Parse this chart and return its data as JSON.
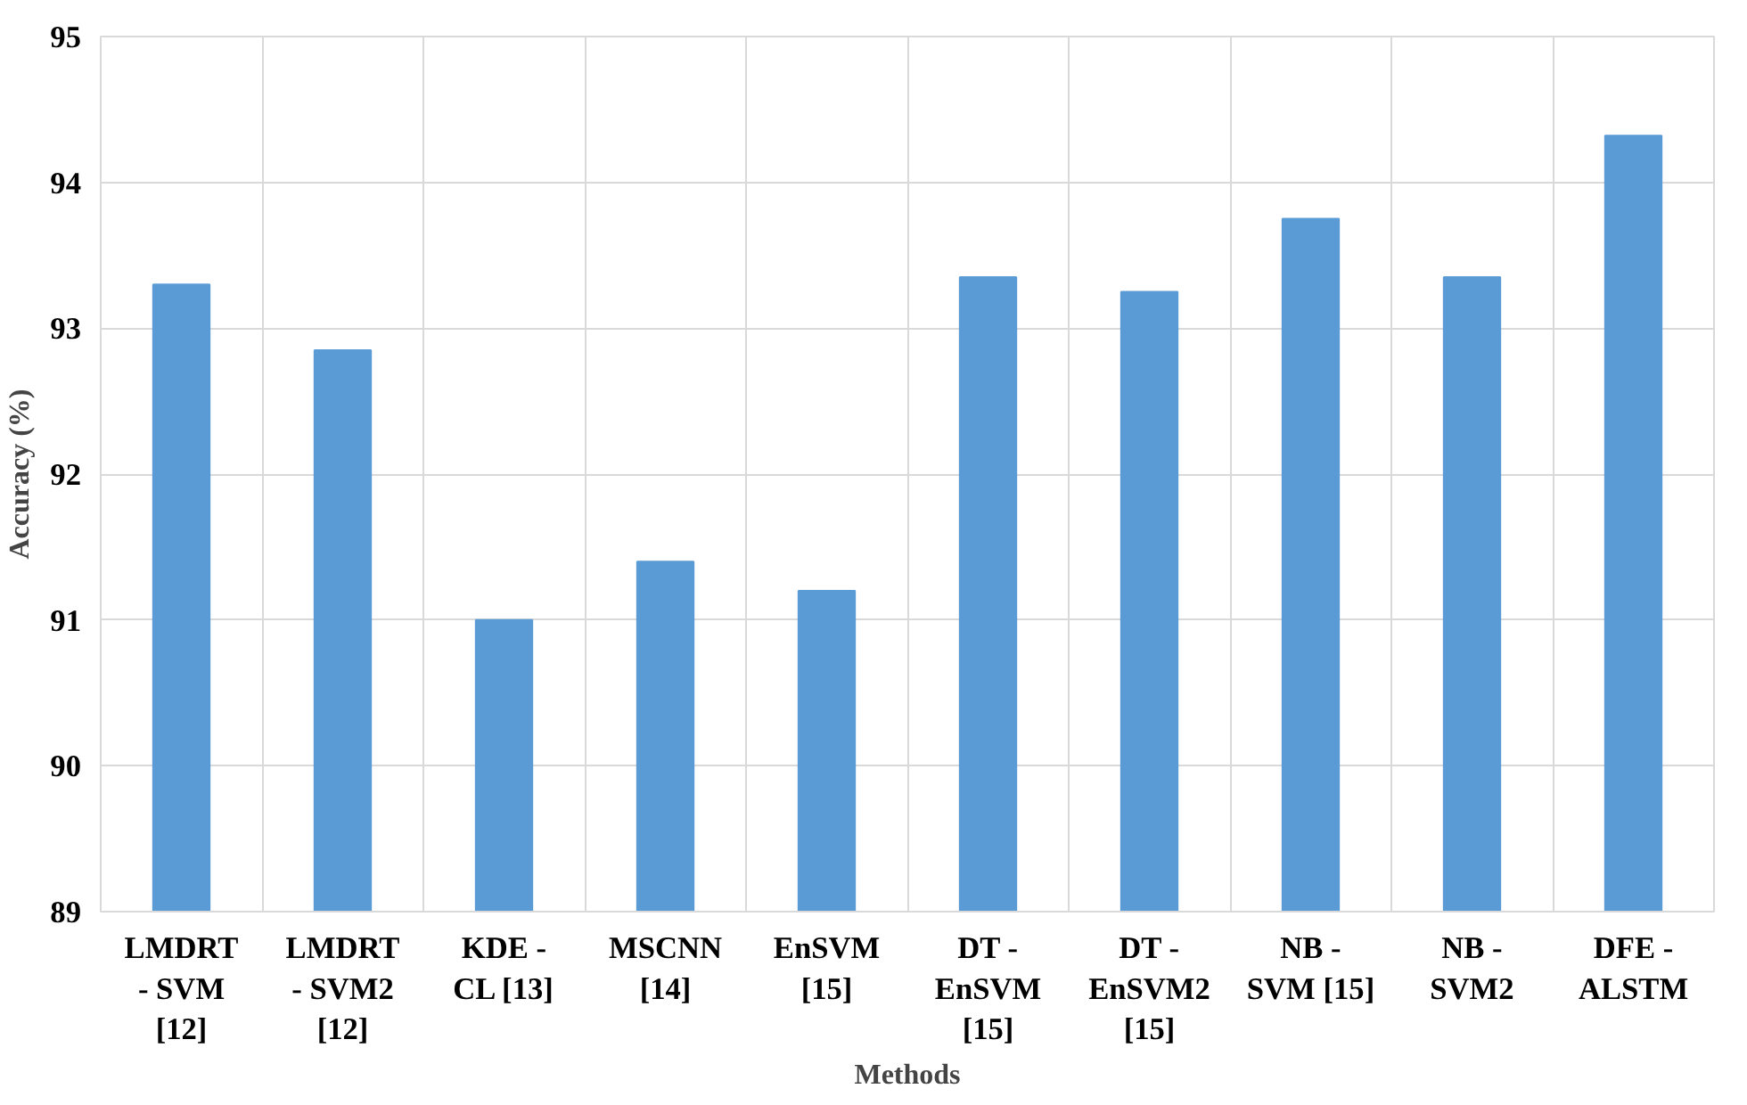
{
  "chart_data": {
    "type": "bar",
    "xlabel": "Methods",
    "ylabel": "Accuracy (%)",
    "categories": [
      "LMDRT\n- SVM\n[12]",
      "LMDRT\n- SVM2\n[12]",
      "KDE -\nCL [13]",
      "MSCNN\n[14]",
      "EnSVM\n[15]",
      "DT -\nEnSVM\n[15]",
      "DT -\nEnSVM2\n[15]",
      "NB -\nSVM [15]",
      "NB -\nSVM2",
      "DFE -\nALSTM"
    ],
    "values": [
      93.3,
      92.85,
      91.0,
      91.4,
      91.2,
      93.35,
      93.25,
      93.75,
      93.35,
      94.32
    ],
    "color": "#5b9bd5",
    "ylim": [
      89,
      95
    ],
    "yticks": [
      89,
      90,
      91,
      92,
      93,
      94,
      95
    ],
    "grid": true
  }
}
